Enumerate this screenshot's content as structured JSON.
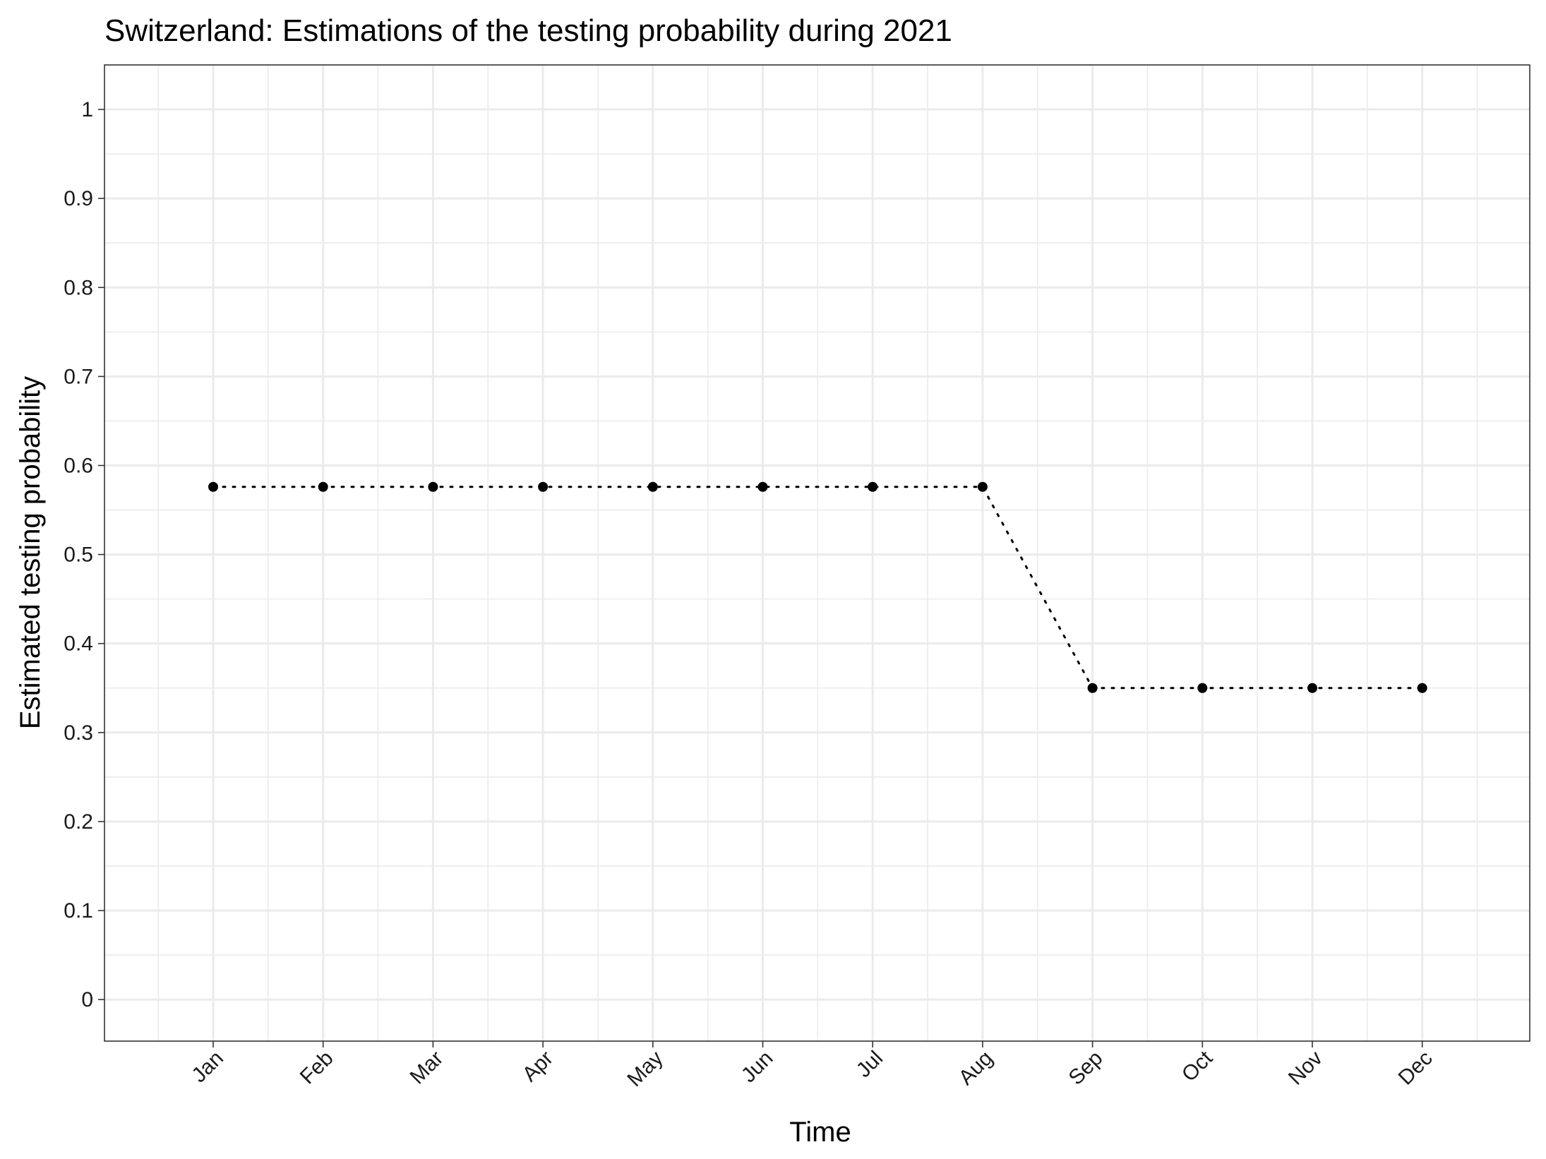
{
  "chart_data": {
    "type": "line",
    "title": "Switzerland: Estimations of the testing probability during 2021",
    "xlabel": "Time",
    "ylabel": "Estimated testing probability",
    "categories": [
      "Jan",
      "Feb",
      "Mar",
      "Apr",
      "May",
      "Jun",
      "Jul",
      "Aug",
      "Sep",
      "Oct",
      "Nov",
      "Dec"
    ],
    "series": [
      {
        "values": [
          0.576,
          0.576,
          0.576,
          0.576,
          0.576,
          0.576,
          0.576,
          0.576,
          0.35,
          0.35,
          0.35,
          0.35
        ],
        "line_style": "dotted",
        "color": "#000000"
      }
    ],
    "y_ticks": [
      "0",
      "0.1",
      "0.2",
      "0.3",
      "0.4",
      "0.5",
      "0.6",
      "0.7",
      "0.8",
      "0.9",
      "1"
    ],
    "ylim": [
      -0.0467,
      1.05
    ],
    "grid": true,
    "grid_color": "#ebebeb",
    "panel_border_color": "#333333",
    "background": "#ffffff"
  }
}
